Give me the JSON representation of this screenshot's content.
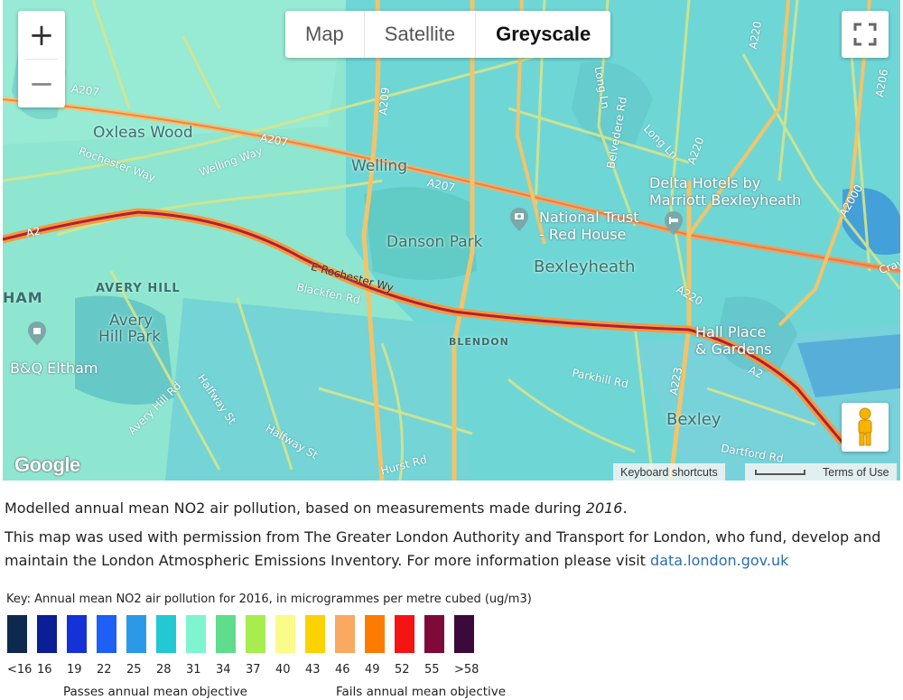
{
  "map": {
    "maptype_buttons": [
      {
        "label": "Map",
        "active": false
      },
      {
        "label": "Satellite",
        "active": false
      },
      {
        "label": "Greyscale",
        "active": true
      }
    ],
    "zoom_in_label": "+",
    "zoom_out_label": "−",
    "google_logo": "Google",
    "keyboard_shortcuts": "Keyboard shortcuts",
    "terms": "Terms of Use",
    "places": {
      "oxleas_wood": "Oxleas Wood",
      "welling": "Welling",
      "danson_park": "Danson Park",
      "bexleyheath": "Bexleyheath",
      "avery_hill_district": "AVERY HILL",
      "avery_hill_park_1": "Avery",
      "avery_hill_park_2": "Hill Park",
      "blendon": "BLENDON",
      "bexley": "Bexley",
      "ham": "HAM"
    },
    "pois": {
      "national_trust_1": "National Trust",
      "national_trust_2": "- Red House",
      "delta_hotels_1": "Delta Hotels by",
      "delta_hotels_2": "Marriott Bexleyheath",
      "hall_place_1": "Hall Place",
      "hall_place_2": "& Gardens",
      "bq_eltham": "B&Q Eltham"
    },
    "roads": {
      "a207_left": "A207",
      "a207_mid": "A207",
      "a207_right": "A207",
      "a209": "A209",
      "a2": "A2",
      "a2_right": "A2",
      "a220_top": "A220",
      "a206": "A206",
      "a220": "A220",
      "a2000": "A2000",
      "a223": "A223",
      "a220_low": "A220",
      "rochester_way": "Rochester Way",
      "welling_way": "Welling Way",
      "e_rochester_wy": "E Rochester Wy",
      "blackfen_rd": "Blackfen Rd",
      "belvedere_rd": "Belvedere Rd",
      "long_ln": "Long Ln",
      "long_ln_2": "Long Ln",
      "halfway_st": "Halfway St",
      "halfway_st_2": "Halfway St",
      "avery_hill_rd": "Avery Hill Rd",
      "parkhill_rd": "Parkhill Rd",
      "hurst_rd": "Hurst Rd",
      "dartford_rd": "Dartford Rd",
      "cray": "Cray"
    }
  },
  "caption": {
    "line1_prefix": "Modelled annual mean NO2 air pollution, based on measurements made during ",
    "line1_year": "2016",
    "line1_suffix": ".",
    "line2": "This map was used with permission from The Greater London Authority and Transport for London, who fund, develop and maintain the London Atmospheric Emissions Inventory. For more information please visit ",
    "link": "data.london.gov.uk"
  },
  "key": {
    "title": "Key: Annual mean NO2 air pollution for 2016, in microgrammes per metre cubed (ug/m3)",
    "levels": [
      {
        "label": "<16",
        "color": "#0d2a4e"
      },
      {
        "label": "16",
        "color": "#0a1f96"
      },
      {
        "label": "19",
        "color": "#1432d8"
      },
      {
        "label": "22",
        "color": "#1e5ff5"
      },
      {
        "label": "25",
        "color": "#2a9ae8"
      },
      {
        "label": "28",
        "color": "#22c8d4"
      },
      {
        "label": "31",
        "color": "#7ef5cf"
      },
      {
        "label": "34",
        "color": "#5fdc8c"
      },
      {
        "label": "37",
        "color": "#a8ec50"
      },
      {
        "label": "40",
        "color": "#fbfb8a"
      },
      {
        "label": "43",
        "color": "#fcd200"
      },
      {
        "label": "46",
        "color": "#f9aa60"
      },
      {
        "label": "49",
        "color": "#fb7c00"
      },
      {
        "label": "52",
        "color": "#f51414"
      },
      {
        "label": "55",
        "color": "#7f0a3a"
      },
      {
        "label": ">58",
        "color": "#3a0a3c"
      }
    ],
    "passes": "Passes annual mean objective",
    "fails": "Fails annual mean objective"
  }
}
